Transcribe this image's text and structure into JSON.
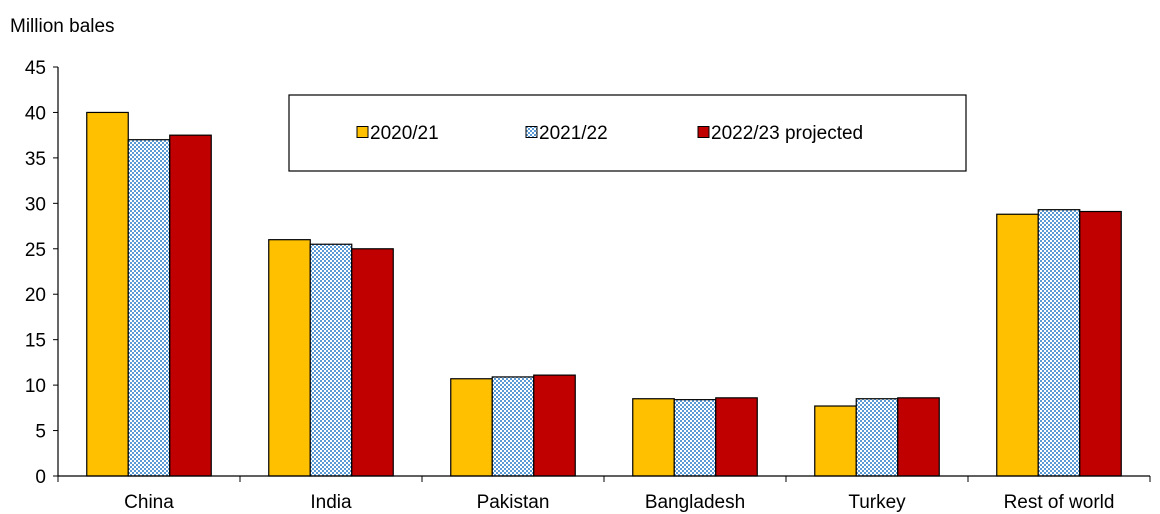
{
  "chart_data": {
    "type": "bar",
    "ylabel": "Million bales",
    "xlabel": "",
    "ylim": [
      0,
      45
    ],
    "yticks": [
      0,
      5,
      10,
      15,
      20,
      25,
      30,
      35,
      40,
      45
    ],
    "categories": [
      "China",
      "India",
      "Pakistan",
      "Bangladesh",
      "Turkey",
      "Rest of world"
    ],
    "series": [
      {
        "name": "2020/21",
        "values": [
          40.0,
          26.0,
          10.7,
          8.5,
          7.7,
          28.8
        ],
        "color": "#FFC000",
        "pattern": "solid"
      },
      {
        "name": "2021/22",
        "values": [
          37.0,
          25.5,
          10.9,
          8.4,
          8.5,
          29.3
        ],
        "color": "#5B9BD5",
        "pattern": "checker"
      },
      {
        "name": "2022/23 projected",
        "values": [
          37.5,
          25.0,
          11.1,
          8.6,
          8.6,
          29.1
        ],
        "color": "#C00000",
        "pattern": "solid"
      }
    ],
    "grid": false,
    "legend_position": "top-center"
  }
}
